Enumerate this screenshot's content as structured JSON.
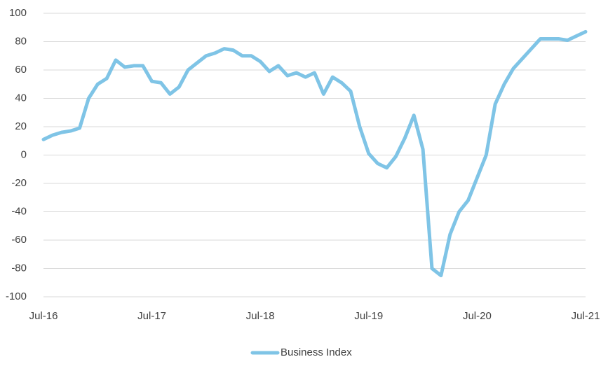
{
  "chart_data": {
    "type": "line",
    "categories": [
      "Jul-16",
      null,
      null,
      null,
      null,
      null,
      null,
      null,
      null,
      null,
      null,
      null,
      "Jul-17",
      null,
      null,
      null,
      null,
      null,
      null,
      null,
      null,
      null,
      null,
      null,
      "Jul-18",
      null,
      null,
      null,
      null,
      null,
      null,
      null,
      null,
      null,
      null,
      null,
      "Jul-19",
      null,
      null,
      null,
      null,
      null,
      null,
      null,
      null,
      null,
      null,
      null,
      "Jul-20",
      null,
      null,
      null,
      null,
      null,
      null,
      null,
      null,
      null,
      null,
      null,
      "Jul-21"
    ],
    "series": [
      {
        "name": "Business Index",
        "color": "#7fc4e6",
        "values": [
          11,
          14,
          16,
          17,
          19,
          40,
          50,
          54,
          67,
          62,
          63,
          63,
          52,
          51,
          43,
          48,
          60,
          65,
          70,
          72,
          75,
          74,
          70,
          70,
          66,
          59,
          63,
          56,
          58,
          55,
          58,
          43,
          55,
          51,
          45,
          20,
          1,
          -6,
          -9,
          -1,
          12,
          28,
          4,
          -80,
          -85,
          -56,
          -40,
          -32,
          -16,
          0,
          36,
          50,
          61,
          68,
          75,
          82,
          82,
          82,
          81,
          84,
          87
        ]
      }
    ],
    "ylim": [
      -100,
      100
    ],
    "yticks": [
      -100,
      -80,
      -60,
      -40,
      -20,
      0,
      20,
      40,
      60,
      80,
      100
    ],
    "grid": true,
    "legend": "bottom"
  }
}
